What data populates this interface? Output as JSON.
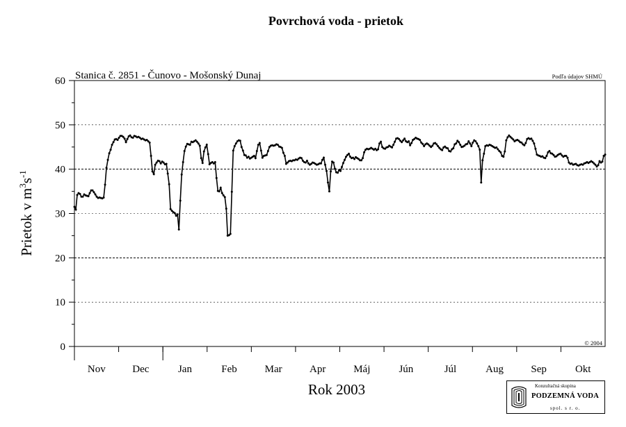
{
  "chart_data": {
    "type": "line",
    "title": "Povrchová voda - prietok",
    "station": "Stanica č. 2851 - Čunovo - Mošonský Dunaj",
    "source": "Podľa údajov SHMÚ",
    "copyright": "© 2004",
    "xlabel": "Rok 2003",
    "ylabel_main": "Prietok v m",
    "ylabel_sup1": "3",
    "ylabel_mid": "s",
    "ylabel_sup2": "-1",
    "ylim": [
      0,
      60
    ],
    "yticks": [
      "0",
      "10",
      "20",
      "30",
      "40",
      "50",
      "60"
    ],
    "months": [
      "Nov",
      "Dec",
      "Jan",
      "Feb",
      "Mar",
      "Apr",
      "Máj",
      "Jún",
      "Júl",
      "Aug",
      "Sep",
      "Okt"
    ],
    "grid": "horizontal",
    "markers": true,
    "series": [
      {
        "values": [
          31.5,
          30.9,
          34.2,
          34.6,
          34.4,
          33.8,
          33.8,
          34.3,
          34.1,
          34.0,
          33.9,
          34.6,
          35.2,
          35.2,
          34.8,
          34.3,
          33.8,
          33.5,
          33.6,
          33.5,
          33.4,
          33.6,
          36.5,
          40.3,
          42.1,
          43.6,
          44.4,
          45.5,
          46.1,
          46.7,
          46.8,
          46.6,
          47.1,
          47.5,
          47.5,
          47.3,
          46.9,
          46.1,
          46.8,
          47.4,
          47.6,
          47.2,
          47.1,
          47.5,
          47.4,
          47.2,
          47.3,
          47.1,
          46.8,
          46.9,
          46.7,
          46.5,
          46.6,
          46.3,
          46.0,
          43.0,
          39.5,
          38.9,
          41.0,
          41.5,
          41.9,
          41.8,
          41.3,
          41.7,
          41.5,
          41.1,
          41.2,
          39.0,
          36.6,
          31.0,
          30.6,
          30.3,
          30.1,
          29.5,
          29.8,
          26.4,
          32.9,
          38.8,
          41.6,
          44.1,
          45.1,
          45.7,
          45.6,
          45.5,
          46.2,
          46.1,
          46.3,
          46.5,
          46.2,
          45.8,
          45.3,
          42.5,
          41.4,
          44.0,
          44.9,
          45.5,
          43.4,
          41.1,
          41.4,
          41.6,
          41.3,
          41.6,
          38.0,
          35.1,
          35.0,
          35.8,
          34.6,
          34.1,
          33.7,
          31.1,
          25.0,
          25.1,
          25.4,
          34.9,
          44.2,
          45.2,
          45.8,
          46.3,
          46.5,
          46.4,
          45.0,
          44.2,
          43.2,
          43.1,
          42.6,
          42.8,
          42.4,
          42.6,
          42.8,
          43.0,
          42.5,
          44.1,
          45.5,
          45.9,
          44.2,
          42.6,
          43.0,
          43.1,
          43.2,
          44.1,
          45.0,
          45.3,
          45.4,
          45.3,
          45.4,
          45.6,
          45.5,
          45.1,
          45.0,
          44.8,
          43.7,
          43.0,
          41.2,
          41.5,
          41.8,
          41.9,
          41.8,
          42.0,
          42.0,
          42.2,
          42.1,
          42.4,
          42.6,
          42.5,
          41.9,
          41.6,
          41.5,
          41.9,
          41.3,
          41.0,
          41.2,
          41.5,
          41.4,
          41.2,
          41.0,
          41.1,
          41.3,
          41.3,
          42.1,
          42.6,
          41.0,
          39.6,
          37.0,
          35.0,
          39.5,
          41.7,
          41.5,
          40.1,
          39.3,
          39.2,
          39.8,
          39.6,
          40.5,
          41.4,
          42.1,
          42.8,
          43.2,
          43.5,
          42.8,
          42.5,
          42.6,
          42.3,
          42.7,
          42.5,
          42.3,
          42.0,
          42.0,
          42.5,
          43.8,
          44.4,
          44.6,
          44.5,
          44.6,
          44.8,
          44.6,
          44.4,
          44.6,
          44.3,
          44.5,
          45.8,
          46.2,
          45.0,
          44.7,
          44.6,
          44.9,
          45.0,
          45.3,
          45.1,
          44.9,
          45.5,
          46.2,
          46.9,
          47.0,
          46.8,
          46.4,
          46.1,
          46.5,
          46.9,
          46.3,
          46.1,
          46.3,
          45.4,
          45.9,
          46.6,
          46.8,
          47.1,
          46.9,
          46.8,
          46.6,
          46.0,
          45.7,
          45.2,
          45.6,
          45.8,
          45.6,
          45.3,
          45.0,
          45.3,
          45.8,
          45.9,
          45.6,
          45.2,
          44.8,
          44.5,
          44.3,
          44.9,
          45.1,
          44.8,
          44.7,
          44.1,
          44.0,
          44.5,
          44.7,
          45.6,
          45.8,
          46.4,
          46.1,
          45.5,
          45.0,
          45.1,
          45.3,
          45.6,
          45.7,
          46.3,
          45.8,
          45.2,
          46.0,
          46.5,
          46.3,
          45.8,
          45.2,
          44.4,
          37.0,
          42.0,
          43.5,
          45.2,
          45.4,
          45.3,
          45.5,
          45.4,
          45.2,
          45.0,
          44.8,
          44.9,
          44.5,
          44.1,
          43.8,
          43.0,
          42.8,
          44.0,
          46.5,
          47.2,
          47.6,
          47.3,
          47.0,
          46.7,
          46.3,
          46.5,
          46.6,
          46.4,
          46.1,
          46.0,
          45.6,
          45.4,
          45.9,
          46.8,
          47.0,
          46.8,
          46.9,
          46.4,
          45.8,
          44.6,
          43.3,
          43.1,
          43.0,
          42.8,
          42.9,
          42.6,
          42.5,
          43.0,
          43.8,
          44.1,
          43.6,
          43.5,
          43.2,
          42.8,
          42.9,
          43.2,
          43.4,
          43.5,
          43.1,
          42.8,
          43.0,
          43.0,
          42.6,
          41.5,
          41.2,
          41.3,
          41.0,
          41.1,
          41.2,
          40.9,
          40.8,
          41.0,
          41.1,
          41.0,
          41.3,
          41.4,
          41.6,
          41.4,
          41.6,
          41.8,
          41.6,
          41.3,
          41.0,
          40.6,
          40.9,
          41.8,
          41.5,
          41.7,
          43.0,
          43.3
        ]
      }
    ]
  },
  "logo": {
    "line1": "Konzultačná skupina",
    "line2": "PODZEMNÁ VODA",
    "line3": "spol. s r. o."
  }
}
